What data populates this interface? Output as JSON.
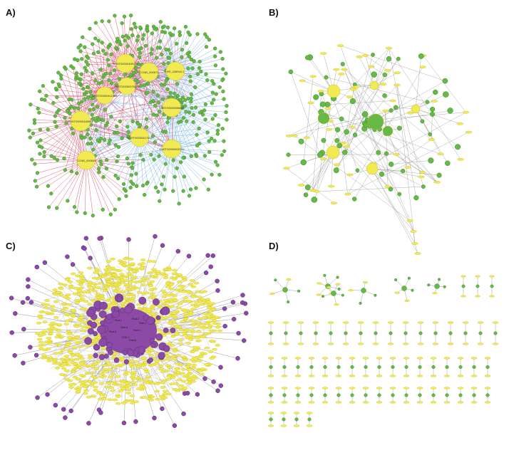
{
  "figure": {
    "panel_labels": {
      "a": "A)",
      "b": "B)",
      "c": "C)",
      "d": "D)"
    },
    "colors": {
      "node_green": "#66b847",
      "node_green_dark": "#3f8e2c",
      "node_yellow": "#f2ea53",
      "node_yellow_dark": "#c9bf2a",
      "node_purple": "#8a4aa6",
      "node_purple_dark": "#5e2a78",
      "edge_red": "#d9405e",
      "edge_blue": "#6aaee6",
      "edge_gray": "#8a8a8a"
    }
  },
  "panel_a": {
    "hubs": [
      {
        "id": "a-hub-1",
        "label": "ENST00000409179"
      },
      {
        "id": "a-hub-2",
        "label": "CCNB_000673"
      },
      {
        "id": "a-hub-3",
        "label": "XR_428944.1"
      },
      {
        "id": "a-hub-4",
        "label": "ENST00000378226"
      },
      {
        "id": "a-hub-5",
        "label": "ENST00000411566"
      },
      {
        "id": "a-hub-6",
        "label": "ENST00000566866"
      },
      {
        "id": "a-hub-7",
        "label": "ENST00000446559"
      },
      {
        "id": "a-hub-8",
        "label": "ENST00000417617"
      },
      {
        "id": "a-hub-9",
        "label": "ENST00000502224"
      },
      {
        "id": "a-hub-10",
        "label": "CCNB_000849"
      }
    ]
  },
  "panel_c": {
    "center_labels": [
      "Rad-1",
      "Rad-2",
      "Rad-3",
      "Rad-4",
      "Rad-5",
      "CDK-1",
      "Rad-6",
      "Rad-7"
    ]
  }
}
